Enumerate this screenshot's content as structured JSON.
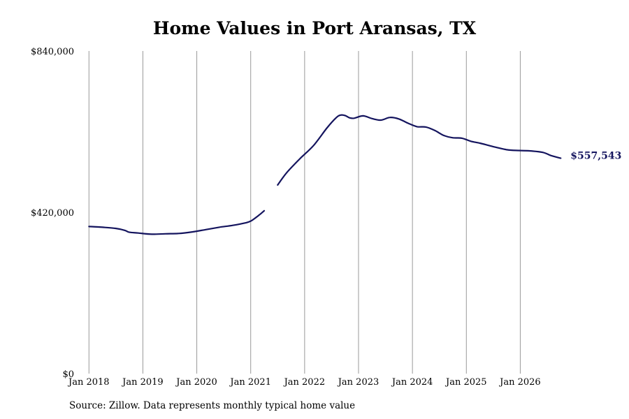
{
  "chart_data": {
    "type": "line",
    "title": "Home Values in Port Aransas, TX",
    "xlabel": "",
    "ylabel": "",
    "x_ticks": [
      "Jan 2018",
      "Jan 2019",
      "Jan 2020",
      "Jan 2021",
      "Jan 2022",
      "Jan 2023",
      "Jan 2024",
      "Jan 2025",
      "Jan 2026"
    ],
    "y_ticks": [
      "$0",
      "$420,000",
      "$840,000"
    ],
    "ylim": [
      0,
      840000
    ],
    "xlim": [
      "2017-10",
      "2027-02"
    ],
    "grid": "vertical",
    "line_color": "#14145e",
    "series": [
      {
        "segments": [
          [
            [
              "2018-01",
              383000
            ],
            [
              "2018-04",
              381000
            ],
            [
              "2018-07",
              378000
            ],
            [
              "2018-09",
              373000
            ],
            [
              "2018-10",
              368000
            ],
            [
              "2018-12",
              366000
            ],
            [
              "2019-03",
              363000
            ],
            [
              "2019-06",
              364000
            ],
            [
              "2019-09",
              365000
            ],
            [
              "2019-12",
              369000
            ],
            [
              "2020-03",
              375000
            ],
            [
              "2020-06",
              381000
            ],
            [
              "2020-09",
              386000
            ],
            [
              "2020-12",
              393000
            ],
            [
              "2021-01",
              397000
            ],
            [
              "2021-02",
              405000
            ],
            [
              "2021-03",
              414000
            ],
            [
              "2021-04",
              424000
            ]
          ],
          [
            [
              "2021-07",
              491000
            ],
            [
              "2021-09",
              523000
            ],
            [
              "2021-12",
              560000
            ],
            [
              "2022-03",
              594000
            ],
            [
              "2022-06",
              640000
            ],
            [
              "2022-08",
              666000
            ],
            [
              "2022-09",
              673000
            ],
            [
              "2022-10",
              672000
            ],
            [
              "2022-11",
              666000
            ],
            [
              "2022-12",
              665000
            ],
            [
              "2023-02",
              671000
            ],
            [
              "2023-04",
              664000
            ],
            [
              "2023-06",
              660000
            ],
            [
              "2023-08",
              667000
            ],
            [
              "2023-10",
              663000
            ],
            [
              "2023-12",
              652000
            ],
            [
              "2024-02",
              643000
            ],
            [
              "2024-04",
              642000
            ],
            [
              "2024-06",
              633000
            ],
            [
              "2024-08",
              620000
            ],
            [
              "2024-10",
              614000
            ],
            [
              "2024-12",
              613000
            ],
            [
              "2025-02",
              605000
            ],
            [
              "2025-04",
              600000
            ],
            [
              "2025-06",
              594000
            ],
            [
              "2025-08",
              588000
            ],
            [
              "2025-10",
              583000
            ],
            [
              "2025-12",
              581000
            ],
            [
              "2026-03",
              580000
            ],
            [
              "2026-06",
              576000
            ],
            [
              "2026-08",
              567000
            ],
            [
              "2026-10",
              561000
            ]
          ]
        ]
      }
    ],
    "end_label": "$557,543"
  },
  "source": "Source: Zillow. Data represents monthly typical home value"
}
